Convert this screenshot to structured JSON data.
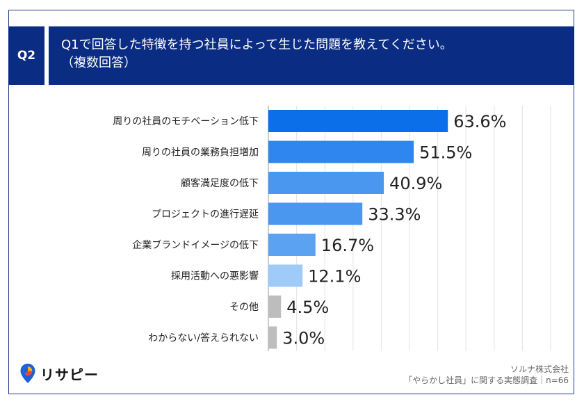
{
  "header": {
    "badge": "Q2",
    "question_line1": "Q1で回答した特徴を持つ社員によって生じた問題を教えてください。",
    "question_line2": "（複数回答）"
  },
  "chart_data": {
    "type": "bar",
    "orientation": "horizontal",
    "categories": [
      "周りの社員のモチベーション低下",
      "周りの社員の業務負担増加",
      "顧客満足度の低下",
      "プロジェクトの進行遅延",
      "企業ブランドイメージの低下",
      "採用活動への悪影響",
      "その他",
      "わからない/答えられない"
    ],
    "values": [
      63.6,
      51.5,
      40.9,
      33.3,
      16.7,
      12.1,
      4.5,
      3.0
    ],
    "value_labels": [
      "63.6%",
      "51.5%",
      "40.9%",
      "33.3%",
      "16.7%",
      "12.1%",
      "4.5%",
      "3.0%"
    ],
    "colors": [
      "#0a6fe8",
      "#2f86ee",
      "#4a97f0",
      "#4a97f0",
      "#5ba3f2",
      "#9ecbf8",
      "#bdbdbd",
      "#bdbdbd"
    ],
    "xlim": [
      0,
      100
    ],
    "grid": true
  },
  "logo": {
    "text": "リサピー"
  },
  "source": {
    "line1": "ソルナ株式会社",
    "line2": "「やらかし社員」に関する実態調査｜n=66"
  }
}
